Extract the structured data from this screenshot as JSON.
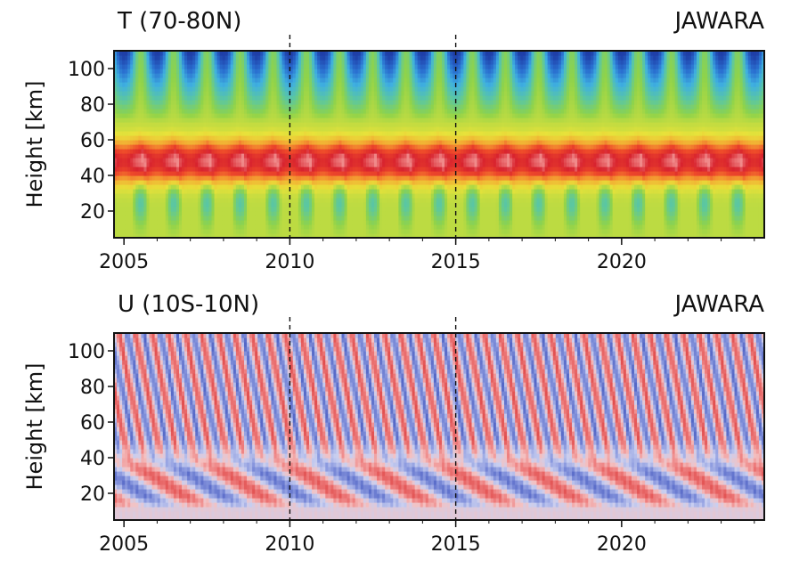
{
  "chart_data": [
    {
      "type": "heatmap",
      "title": "T (70-80N)",
      "source_label": "JAWARA",
      "ylabel": "Height [km]",
      "xlabel": "",
      "xlim": [
        2004.7,
        2024.3
      ],
      "ylim": [
        5,
        110
      ],
      "xticks": [
        "2005",
        "2010",
        "2015",
        "2020"
      ],
      "xtick_values": [
        2005,
        2010,
        2015,
        2020
      ],
      "yticks": [
        "20",
        "40",
        "60",
        "80",
        "100"
      ],
      "ytick_values": [
        20,
        40,
        60,
        80,
        100
      ],
      "dashed_lines_x": [
        2010,
        2015
      ],
      "colormap": "rainbow",
      "colors": [
        "#1f3fa8",
        "#2a6fd0",
        "#3fb0e0",
        "#5cc7a0",
        "#8fd34a",
        "#e8e23a",
        "#f4a532",
        "#ee4a2a",
        "#d8232e",
        "#f08a8a"
      ],
      "pattern": "annual cycle: stratopause warm maximum near 48 km, cold mesosphere above 80 km in summer, warmer mid-winter"
    },
    {
      "type": "heatmap",
      "title": "U (10S-10N)",
      "source_label": "JAWARA",
      "ylabel": "Height [km]",
      "xlabel": "",
      "xlim": [
        2004.7,
        2024.3
      ],
      "ylim": [
        5,
        110
      ],
      "xticks": [
        "2005",
        "2010",
        "2015",
        "2020"
      ],
      "xtick_values": [
        2005,
        2010,
        2015,
        2020
      ],
      "yticks": [
        "20",
        "40",
        "60",
        "80",
        "100"
      ],
      "ytick_values": [
        20,
        40,
        60,
        80,
        100
      ],
      "dashed_lines_x": [
        2010,
        2015
      ],
      "colormap": "diverging blue-red",
      "colors": [
        "#4f62c4",
        "#8e9ce0",
        "#c9cff0",
        "#f4c2c2",
        "#ee7f7f",
        "#e04a4a"
      ],
      "pattern": "semiannual oscillation above 40 km and descending quasi-biennial oscillation below 40 km"
    }
  ]
}
